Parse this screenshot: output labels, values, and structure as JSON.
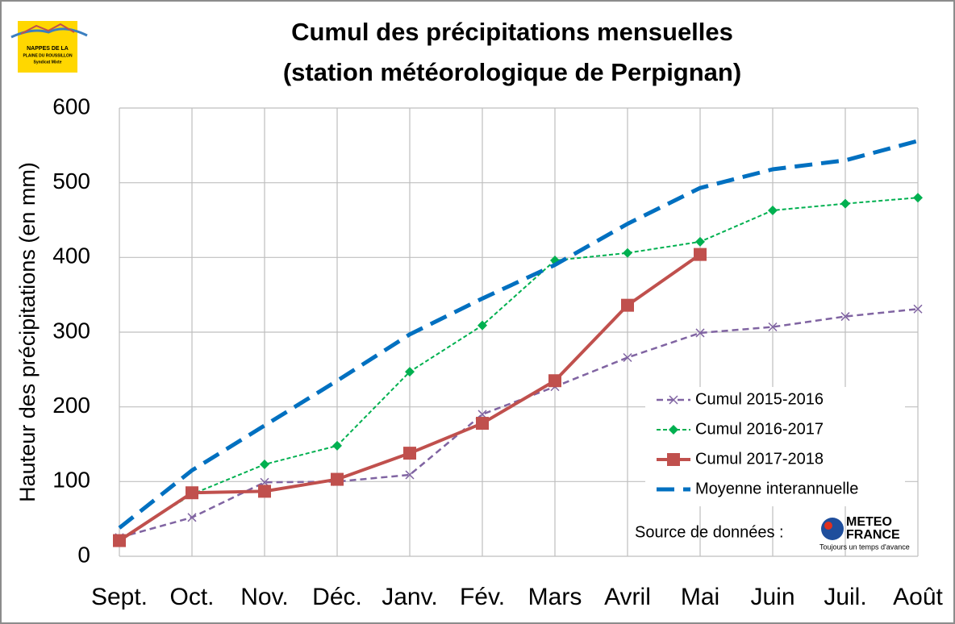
{
  "chart_data": {
    "type": "line",
    "title": [
      "Cumul des précipitations mensuelles",
      "(station météorologique de Perpignan)"
    ],
    "y_label": "Hauteur des précipitations (en mm)",
    "categories": [
      "Sept.",
      "Oct.",
      "Nov.",
      "Déc.",
      "Janv.",
      "Fév.",
      "Mars",
      "Avril",
      "Mai",
      "Juin",
      "Juil.",
      "Août"
    ],
    "series": [
      {
        "name": "Cumul 2015-2016",
        "color": "#8064a2",
        "dash": "8 5",
        "width": 2.5,
        "marker": "x",
        "values": [
          25,
          52,
          99,
          100,
          109,
          190,
          227,
          266,
          299,
          307,
          321,
          331
        ]
      },
      {
        "name": "Cumul 2016-2017",
        "color": "#00b050",
        "dash": "5 3",
        "width": 2,
        "marker": "diamond",
        "values": [
          22,
          83,
          123,
          148,
          247,
          309,
          396,
          406,
          421,
          463,
          472,
          480
        ]
      },
      {
        "name": "Cumul 2017-2018",
        "color": "#c0504d",
        "dash": "",
        "width": 4,
        "marker": "square",
        "values": [
          21,
          85,
          87,
          103,
          138,
          178,
          235,
          336,
          404,
          null,
          null,
          null
        ]
      },
      {
        "name": "Moyenne interannuelle",
        "color": "#0070c0",
        "dash": "22 11",
        "width": 5,
        "marker": "none",
        "values": [
          38,
          115,
          175,
          235,
          297,
          345,
          390,
          445,
          493,
          518,
          530,
          556
        ]
      }
    ],
    "ylim": [
      0,
      600
    ],
    "yticks": [
      0,
      100,
      200,
      300,
      400,
      500,
      600
    ],
    "grid": true,
    "legend": "lower-right",
    "source_label": "Source de données :",
    "source_logo": [
      "METEO",
      "FRANCE",
      "Toujours un temps d'avance"
    ],
    "org_logo": [
      "NAPPES DE LA",
      "PLAINE DU ROUSSILLON",
      "Syndicat Mixte"
    ]
  }
}
